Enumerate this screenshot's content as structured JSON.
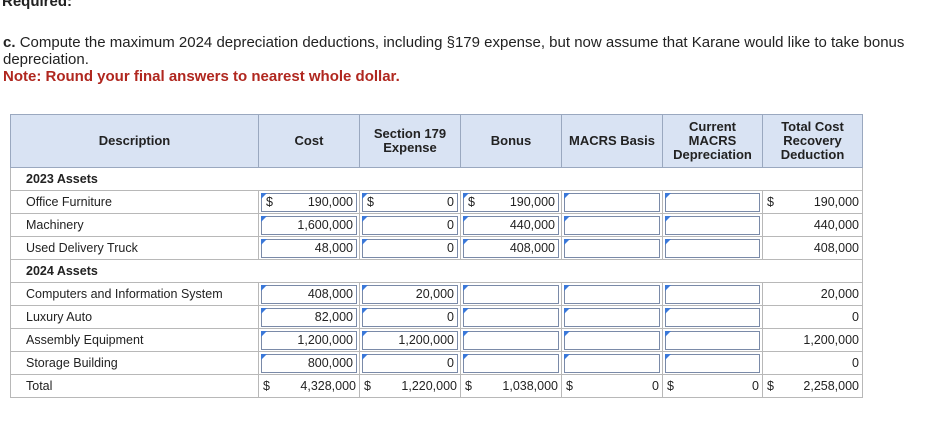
{
  "heading": "Required:",
  "question": {
    "prefix": "c.",
    "text": "Compute the maximum 2024 depreciation deductions, including §179 expense, but now assume that Karane would like to take bonus depreciation."
  },
  "note": "Note: Round your final answers to nearest whole dollar.",
  "table": {
    "headers": [
      "Description",
      "Cost",
      "Section 179 Expense",
      "Bonus",
      "MACRS Basis",
      "Current MACRS Depreciation",
      "Total Cost Recovery Deduction"
    ],
    "section_2023": "2023 Assets",
    "section_2024": "2024 Assets",
    "rows": [
      {
        "desc": "Office Furniture",
        "cost_dollar": "$",
        "cost": "190,000",
        "s179_dollar": "$",
        "s179": "0",
        "bonus_dollar": "$",
        "bonus": "190,000",
        "macrs": "",
        "current": "",
        "total_dollar": "$",
        "total": "190,000"
      },
      {
        "desc": "Machinery",
        "cost_dollar": "",
        "cost": "1,600,000",
        "s179_dollar": "",
        "s179": "0",
        "bonus_dollar": "",
        "bonus": "440,000",
        "macrs": "",
        "current": "",
        "total_dollar": "",
        "total": "440,000"
      },
      {
        "desc": "Used Delivery Truck",
        "cost_dollar": "",
        "cost": "48,000",
        "s179_dollar": "",
        "s179": "0",
        "bonus_dollar": "",
        "bonus": "408,000",
        "macrs": "",
        "current": "",
        "total_dollar": "",
        "total": "408,000"
      },
      {
        "desc": "Computers and Information System",
        "cost_dollar": "",
        "cost": "408,000",
        "s179_dollar": "",
        "s179": "20,000",
        "bonus_dollar": "",
        "bonus": "",
        "macrs": "",
        "current": "",
        "total_dollar": "",
        "total": "20,000"
      },
      {
        "desc": "Luxury Auto",
        "cost_dollar": "",
        "cost": "82,000",
        "s179_dollar": "",
        "s179": "0",
        "bonus_dollar": "",
        "bonus": "",
        "macrs": "",
        "current": "",
        "total_dollar": "",
        "total": "0"
      },
      {
        "desc": "Assembly Equipment",
        "cost_dollar": "",
        "cost": "1,200,000",
        "s179_dollar": "",
        "s179": "1,200,000",
        "bonus_dollar": "",
        "bonus": "",
        "macrs": "",
        "current": "",
        "total_dollar": "",
        "total": "1,200,000"
      },
      {
        "desc": "Storage Building",
        "cost_dollar": "",
        "cost": "800,000",
        "s179_dollar": "",
        "s179": "0",
        "bonus_dollar": "",
        "bonus": "",
        "macrs": "",
        "current": "",
        "total_dollar": "",
        "total": "0"
      }
    ],
    "total_row": {
      "desc": "Total",
      "cost_dollar": "$",
      "cost": "4,328,000",
      "s179_dollar": "$",
      "s179": "1,220,000",
      "bonus_dollar": "$",
      "bonus": "1,038,000",
      "macrs_dollar": "$",
      "macrs": "0",
      "current_dollar": "$",
      "current": "0",
      "total_dollar": "$",
      "total": "2,258,000"
    }
  }
}
